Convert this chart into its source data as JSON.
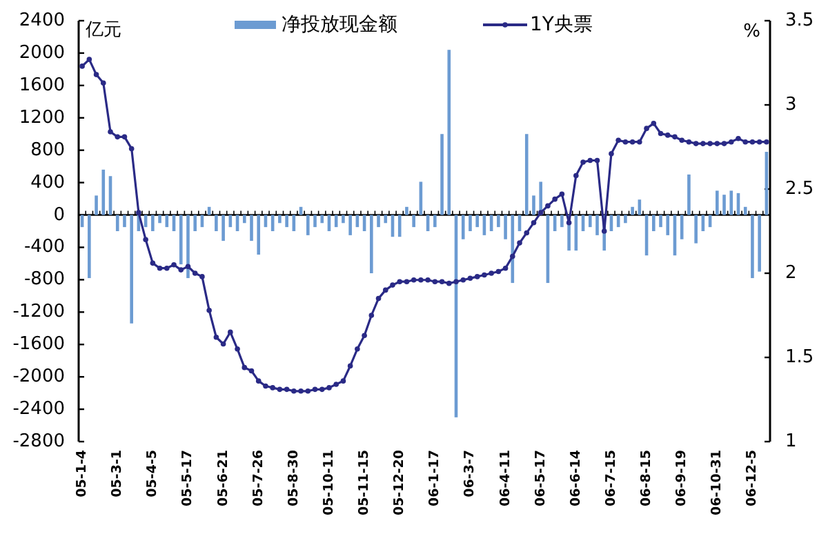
{
  "chart_data": {
    "type": "bar",
    "ylabel": "亿元",
    "y2label": "%",
    "legend": "top",
    "marker": "circle",
    "categories": [
      "05-1-4",
      null,
      null,
      null,
      null,
      "05-3-1",
      null,
      null,
      null,
      null,
      "05-4-5",
      null,
      null,
      null,
      null,
      "05-5-17",
      null,
      null,
      null,
      null,
      "05-6-21",
      null,
      null,
      null,
      null,
      "05-7-26",
      null,
      null,
      null,
      null,
      "05-8-30",
      null,
      null,
      null,
      null,
      "05-10-11",
      null,
      null,
      null,
      null,
      "05-11-15",
      null,
      null,
      null,
      null,
      "05-12-20",
      null,
      null,
      null,
      null,
      "06-1-17",
      null,
      null,
      null,
      null,
      "06-3-7",
      null,
      null,
      null,
      null,
      "06-4-11",
      null,
      null,
      null,
      null,
      "06-5-17",
      null,
      null,
      null,
      null,
      "06-6-14",
      null,
      null,
      null,
      null,
      "06-7-15",
      null,
      null,
      null,
      null,
      "06-8-15",
      null,
      null,
      null,
      null,
      "06-9-19",
      null,
      null,
      null,
      null,
      "06-10-31",
      null,
      null,
      null,
      null,
      "06-12-5",
      null,
      null
    ],
    "series": [
      {
        "name": "净投放现金额",
        "color": "#6c9bd2",
        "values": [
          -150,
          -780,
          240,
          560,
          480,
          -200,
          -150,
          -1340,
          -200,
          -150,
          -200,
          -100,
          -150,
          -200,
          -610,
          -780,
          -200,
          -150,
          100,
          -200,
          -320,
          -150,
          -200,
          -100,
          -320,
          -490,
          -150,
          -200,
          -100,
          -150,
          -200,
          100,
          -250,
          -150,
          -100,
          -200,
          -150,
          -100,
          -250,
          -150,
          -200,
          -720,
          -150,
          -100,
          -270,
          -270,
          100,
          -150,
          410,
          -200,
          -150,
          1000,
          2040,
          -2500,
          -300,
          -200,
          -150,
          -250,
          -200,
          -150,
          -300,
          -840,
          -200,
          1000,
          240,
          410,
          -840,
          -200,
          -150,
          -440,
          -440,
          -200,
          -150,
          -250,
          -440,
          -200,
          -150,
          -100,
          100,
          190,
          -500,
          -200,
          -150,
          -250,
          -500,
          -300,
          500,
          -350,
          -200,
          -150,
          300,
          250,
          300,
          270,
          100,
          -780,
          -700,
          780
        ]
      },
      {
        "name": "1Y央票",
        "type": "line",
        "axis": "y2",
        "color": "#2a2a86",
        "values": [
          3.23,
          3.27,
          3.18,
          3.13,
          2.84,
          2.81,
          2.81,
          2.74,
          2.36,
          2.2,
          2.06,
          2.03,
          2.03,
          2.05,
          2.02,
          2.04,
          2.0,
          1.98,
          1.78,
          1.62,
          1.58,
          1.65,
          1.55,
          1.44,
          1.42,
          1.36,
          1.33,
          1.32,
          1.31,
          1.31,
          1.3,
          1.3,
          1.3,
          1.31,
          1.31,
          1.32,
          1.34,
          1.36,
          1.45,
          1.55,
          1.63,
          1.75,
          1.85,
          1.9,
          1.93,
          1.95,
          1.95,
          1.96,
          1.96,
          1.96,
          1.95,
          1.95,
          1.94,
          1.95,
          1.96,
          1.97,
          1.98,
          1.99,
          2.0,
          2.01,
          2.03,
          2.1,
          2.18,
          2.24,
          2.3,
          2.36,
          2.4,
          2.44,
          2.47,
          2.3,
          2.58,
          2.66,
          2.67,
          2.67,
          2.25,
          2.71,
          2.79,
          2.78,
          2.78,
          2.78,
          2.86,
          2.89,
          2.83,
          2.82,
          2.81,
          2.79,
          2.78,
          2.77,
          2.77,
          2.77,
          2.77,
          2.77,
          2.78,
          2.8,
          2.78,
          2.78,
          2.78,
          2.78
        ]
      }
    ],
    "ylim": [
      -2800,
      2400
    ],
    "yticks": [
      2400,
      2000,
      1600,
      1200,
      800,
      400,
      0,
      -400,
      -800,
      -1200,
      -1600,
      -2000,
      -2400,
      -2800
    ],
    "y2lim": [
      1,
      3.5
    ],
    "y2ticks": [
      1,
      1.5,
      2,
      2.5,
      3,
      3.5
    ]
  }
}
